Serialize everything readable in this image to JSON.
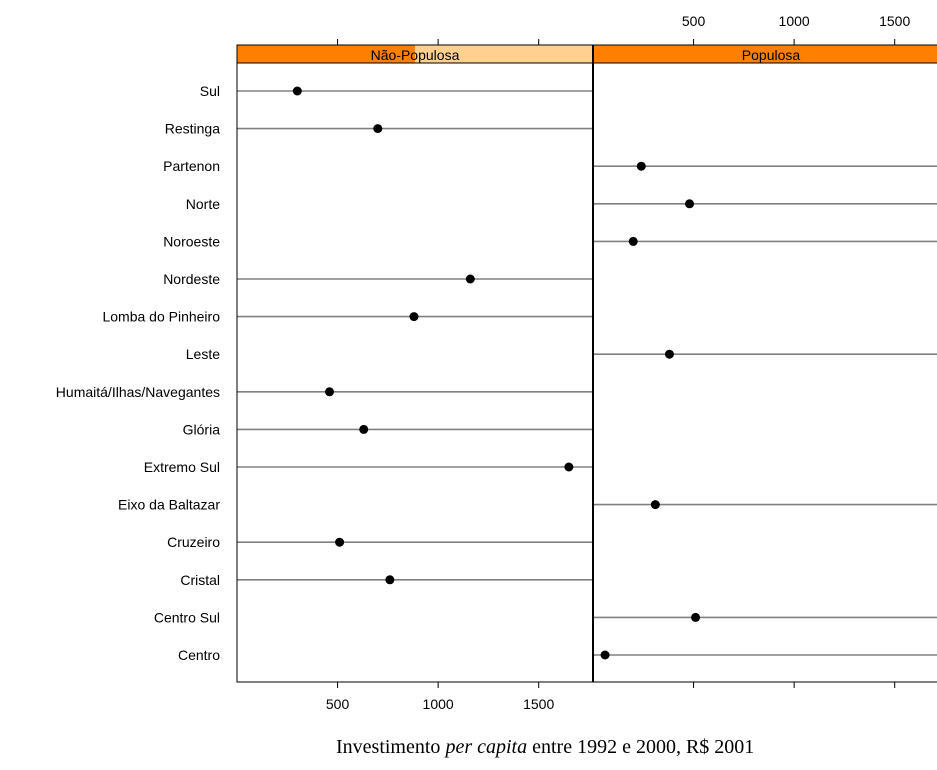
{
  "caption": {
    "prefix": "Investimento ",
    "italic": "per capita",
    "suffix": " entre 1992 e 2000,  R$ 2001"
  },
  "colors": {
    "strip_dark": "#ff7f00",
    "strip_light": "#ffd08f",
    "line": "#808080",
    "point": "#000000"
  },
  "chart_data": {
    "type": "dotplot",
    "xlim": [
      0,
      1770
    ],
    "xticks": [
      500,
      1000,
      1500
    ],
    "xtick_labels": [
      "500",
      "1000",
      "1500"
    ],
    "categories": [
      "Sul",
      "Restinga",
      "Partenon",
      "Norte",
      "Noroeste",
      "Nordeste",
      "Lomba do Pinheiro",
      "Leste",
      "Humaitá/Ilhas/Navegantes",
      "Glória",
      "Extremo Sul",
      "Eixo da Baltazar",
      "Cruzeiro",
      "Cristal",
      "Centro Sul",
      "Centro"
    ],
    "panels": [
      {
        "name": "Não-Populosa",
        "strip_level": 0.5,
        "values": {
          "Sul": 300,
          "Restinga": 700,
          "Nordeste": 1160,
          "Lomba do Pinheiro": 880,
          "Humaitá/Ilhas/Navegantes": 460,
          "Glória": 630,
          "Extremo Sul": 1650,
          "Cruzeiro": 510,
          "Cristal": 760
        }
      },
      {
        "name": "Populosa",
        "strip_level": 1.0,
        "values": {
          "Partenon": 240,
          "Norte": 480,
          "Noroeste": 200,
          "Leste": 380,
          "Eixo da Baltazar": 310,
          "Centro Sul": 510,
          "Centro": 60
        }
      }
    ]
  }
}
